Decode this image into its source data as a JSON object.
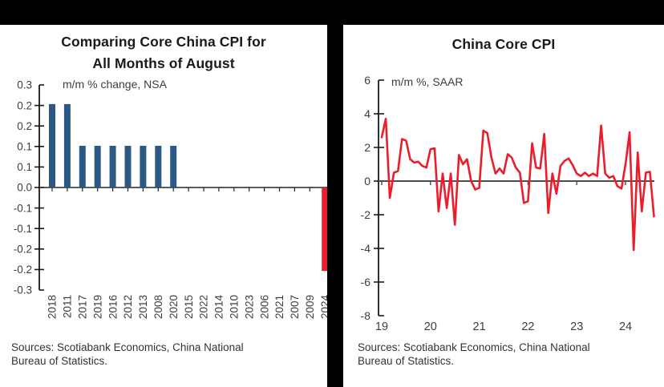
{
  "frame": {
    "divider_color": "#000000",
    "background": "#ffffff"
  },
  "sources": {
    "line1": "Sources: Scotiabank Economics, China National",
    "line2": "Bureau of Statistics."
  },
  "chart_data": [
    {
      "type": "bar",
      "title_line1": "Comparing Core China CPI for",
      "title_line2": "All Months of August",
      "annotation": "m/m % change, NSA",
      "categories": [
        "2018",
        "2011",
        "2017",
        "2019",
        "2016",
        "2012",
        "2013",
        "2008",
        "2020",
        "2015",
        "2022",
        "2014",
        "2010",
        "2023",
        "2006",
        "2021",
        "2007",
        "2009",
        "2024"
      ],
      "values": [
        0.2,
        0.2,
        0.1,
        0.1,
        0.1,
        0.1,
        0.1,
        0.1,
        0.1,
        0,
        0,
        0,
        0,
        0,
        0,
        0,
        0,
        0,
        -0.2
      ],
      "bar_color": "#2b5984",
      "highlight_category": "2024",
      "highlight_color": "#ed1c2b",
      "y_tick_labels": [
        "0.3",
        "0.2",
        "0.2",
        "0.1",
        "0.1",
        "0.0",
        "-0.1",
        "-0.1",
        "-0.2",
        "-0.2",
        "-0.3"
      ],
      "ylim": [
        -0.3,
        0.3
      ],
      "grid": false,
      "legend": "none"
    },
    {
      "type": "line",
      "title": "China Core CPI",
      "annotation": "m/m %, SAAR",
      "x_tick_labels": [
        "19",
        "20",
        "21",
        "22",
        "23",
        "24"
      ],
      "y_tick_labels": [
        "6",
        "4",
        "2",
        "0",
        "-2",
        "-4",
        "-6",
        "-8"
      ],
      "ylim": [
        -8,
        6
      ],
      "x_range_months": [
        "2019-01",
        "2024-08"
      ],
      "grid": false,
      "legend": "none",
      "series": [
        {
          "name": "China Core CPI, m/m % SAAR",
          "color": "#ed1c2b",
          "values": [
            2.6,
            3.7,
            -1.0,
            0.5,
            0.6,
            2.5,
            2.4,
            1.3,
            1.1,
            1.15,
            0.9,
            0.8,
            1.9,
            1.95,
            -1.8,
            0.45,
            -1.6,
            0.45,
            -2.6,
            1.55,
            1.0,
            1.3,
            0.0,
            -0.5,
            -0.4,
            3.0,
            2.85,
            1.4,
            0.45,
            0.75,
            0.45,
            1.6,
            1.4,
            0.8,
            0.5,
            -1.3,
            -1.2,
            2.25,
            0.8,
            0.75,
            2.8,
            -1.9,
            0.45,
            -0.75,
            0.9,
            1.2,
            1.35,
            0.95,
            0.45,
            0.3,
            0.5,
            0.3,
            0.45,
            0.3,
            3.3,
            0.45,
            0.2,
            0.3,
            -0.3,
            -0.45,
            1.0,
            2.9,
            -4.1,
            1.7,
            -1.8,
            0.5,
            0.55,
            -2.1
          ]
        }
      ]
    }
  ]
}
